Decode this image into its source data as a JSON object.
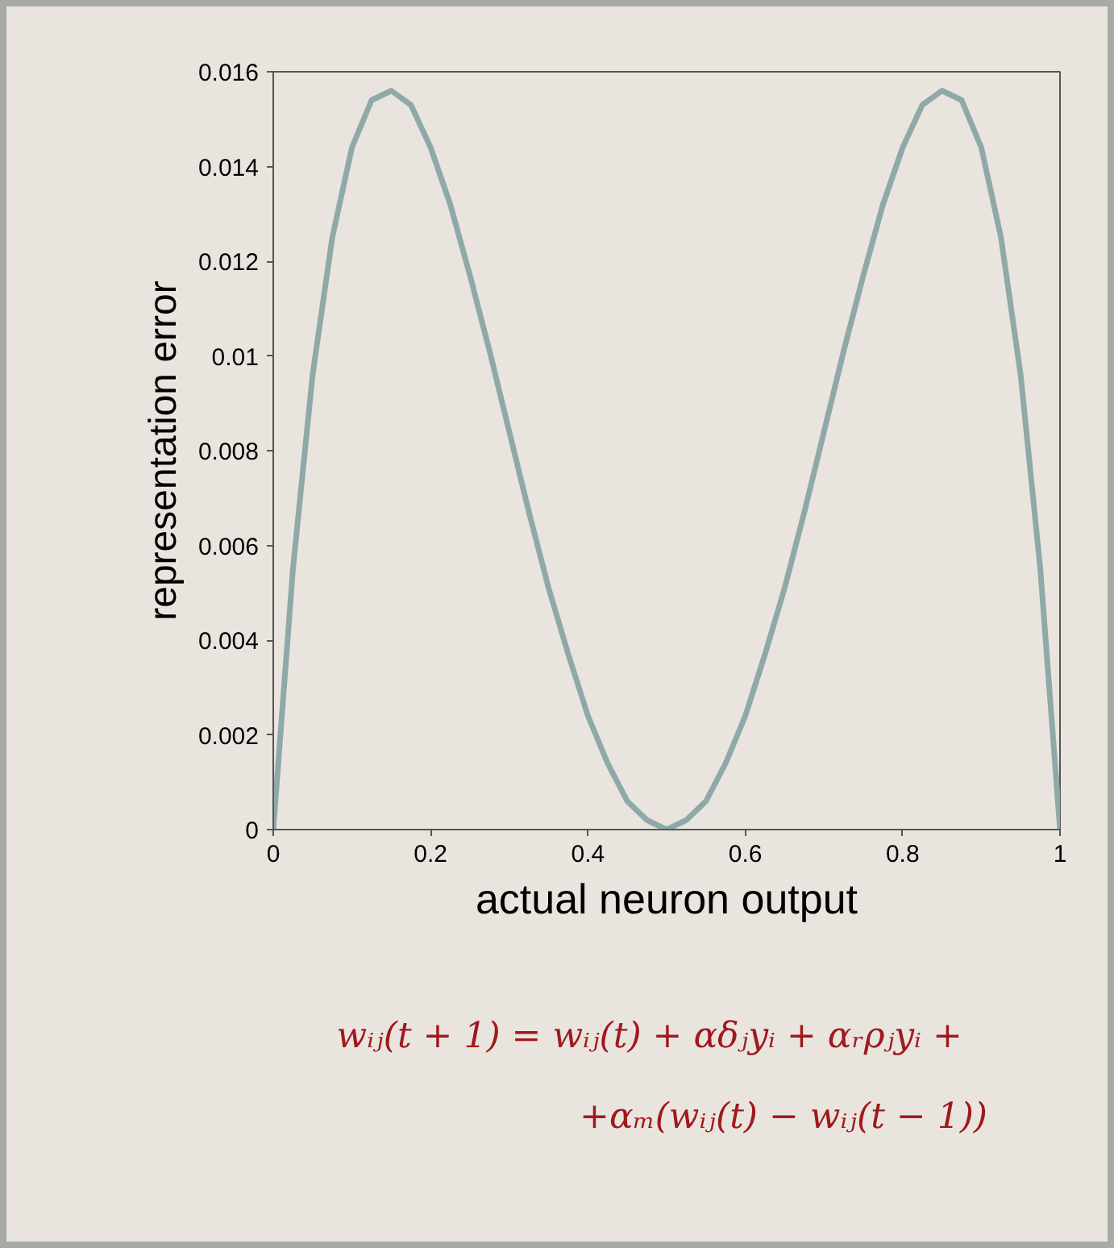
{
  "chart_data": {
    "type": "line",
    "xlabel": "actual neuron output",
    "ylabel": "representation error",
    "x": [
      0,
      0.025,
      0.05,
      0.075,
      0.1,
      0.125,
      0.15,
      0.175,
      0.2,
      0.225,
      0.25,
      0.275,
      0.3,
      0.325,
      0.35,
      0.375,
      0.4,
      0.425,
      0.45,
      0.475,
      0.5,
      0.525,
      0.55,
      0.575,
      0.6,
      0.625,
      0.65,
      0.675,
      0.7,
      0.725,
      0.75,
      0.775,
      0.8,
      0.825,
      0.85,
      0.875,
      0.9,
      0.925,
      0.95,
      0.975,
      1
    ],
    "series": [
      {
        "color": "#8fa9a8",
        "values": [
          0,
          0.0055,
          0.0096,
          0.0125,
          0.0144,
          0.0154,
          0.0156,
          0.0153,
          0.0144,
          0.0132,
          0.0117,
          0.0101,
          0.0084,
          0.0067,
          0.0051,
          0.0037,
          0.0024,
          0.0014,
          0.0006,
          0.0002,
          0,
          0.0002,
          0.0006,
          0.0014,
          0.0024,
          0.0037,
          0.0051,
          0.0067,
          0.0084,
          0.0101,
          0.0117,
          0.0132,
          0.0144,
          0.0153,
          0.0156,
          0.0154,
          0.0144,
          0.0125,
          0.0096,
          0.0055,
          0
        ]
      }
    ],
    "xlim": [
      0,
      1
    ],
    "ylim": [
      0,
      0.016
    ],
    "xticks": [
      0,
      0.2,
      0.4,
      0.6,
      0.8,
      1
    ],
    "yticks": [
      0,
      0.002,
      0.004,
      0.006,
      0.008,
      0.01,
      0.012,
      0.014,
      0.016
    ],
    "grid": false,
    "marker": "none",
    "line_style": "solid",
    "annotations": [
      "wᵢⱼ(t + 1) = wᵢⱼ(t) + αδⱼyᵢ + αᵣρⱼyᵢ +",
      "+αₘ(wᵢⱼ(t) − wᵢⱼ(t − 1))"
    ]
  }
}
